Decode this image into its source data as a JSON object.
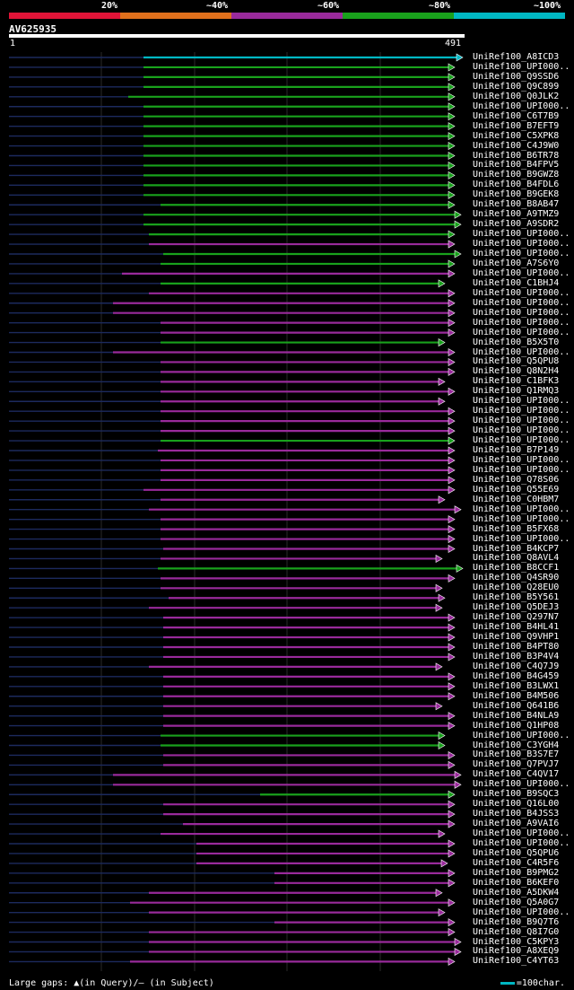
{
  "header": {
    "scale_labels": [
      "20%",
      "~40%",
      "~60%",
      "~80%",
      "~100%"
    ],
    "scale_colors": [
      "#e01437",
      "#e0701c",
      "#992a9b",
      "#19a11c",
      "#00b7c3"
    ],
    "query_id": "AV625935",
    "ruler_start": "1",
    "ruler_end": "491"
  },
  "hits": [
    {
      "name": "UniRef100_A8ICD3",
      "color": "cyan"
    },
    {
      "name": "UniRef100_UPI000..",
      "color": "green"
    },
    {
      "name": "UniRef100_Q9SSD6",
      "color": "green"
    },
    {
      "name": "UniRef100_Q9C899",
      "color": "green"
    },
    {
      "name": "UniRef100_Q0JLK2",
      "color": "green"
    },
    {
      "name": "UniRef100_UPI000..",
      "color": "green"
    },
    {
      "name": "UniRef100_C6T7B9",
      "color": "green"
    },
    {
      "name": "UniRef100_B7EFT9",
      "color": "green"
    },
    {
      "name": "UniRef100_C5XPK8",
      "color": "green"
    },
    {
      "name": "UniRef100_C4J9W0",
      "color": "green"
    },
    {
      "name": "UniRef100_B6TR78",
      "color": "green"
    },
    {
      "name": "UniRef100_B4FPV5",
      "color": "green"
    },
    {
      "name": "UniRef100_B9GWZ8",
      "color": "green"
    },
    {
      "name": "UniRef100_B4FDL6",
      "color": "green"
    },
    {
      "name": "UniRef100_B9GEK8",
      "color": "green"
    },
    {
      "name": "UniRef100_B8AB47",
      "color": "green"
    },
    {
      "name": "UniRef100_A9TMZ9",
      "color": "green"
    },
    {
      "name": "UniRef100_A9SDR2",
      "color": "green"
    },
    {
      "name": "UniRef100_UPI000..",
      "color": "green"
    },
    {
      "name": "UniRef100_UPI000..",
      "color": "purple"
    },
    {
      "name": "UniRef100_UPI000..",
      "color": "green"
    },
    {
      "name": "UniRef100_A7S6Y0",
      "color": "green"
    },
    {
      "name": "UniRef100_UPI000..",
      "color": "purple"
    },
    {
      "name": "UniRef100_C1BHJ4",
      "color": "green"
    },
    {
      "name": "UniRef100_UPI000..",
      "color": "purple"
    },
    {
      "name": "UniRef100_UPI000..",
      "color": "purple"
    },
    {
      "name": "UniRef100_UPI000..",
      "color": "purple"
    },
    {
      "name": "UniRef100_UPI000..",
      "color": "purple"
    },
    {
      "name": "UniRef100_UPI000..",
      "color": "purple"
    },
    {
      "name": "UniRef100_B5X5T0",
      "color": "green"
    },
    {
      "name": "UniRef100_UPI000..",
      "color": "purple"
    },
    {
      "name": "UniRef100_Q5QPU8",
      "color": "purple"
    },
    {
      "name": "UniRef100_Q8N2H4",
      "color": "purple"
    },
    {
      "name": "UniRef100_C1BFK3",
      "color": "purple"
    },
    {
      "name": "UniRef100_Q1RMQ3",
      "color": "purple"
    },
    {
      "name": "UniRef100_UPI000..",
      "color": "purple"
    },
    {
      "name": "UniRef100_UPI000..",
      "color": "purple"
    },
    {
      "name": "UniRef100_UPI000..",
      "color": "purple"
    },
    {
      "name": "UniRef100_UPI000..",
      "color": "purple"
    },
    {
      "name": "UniRef100_UPI000..",
      "color": "green"
    },
    {
      "name": "UniRef100_B7P149",
      "color": "purple"
    },
    {
      "name": "UniRef100_UPI000..",
      "color": "purple"
    },
    {
      "name": "UniRef100_UPI000..",
      "color": "purple"
    },
    {
      "name": "UniRef100_Q78S06",
      "color": "purple"
    },
    {
      "name": "UniRef100_Q55E69",
      "color": "purple"
    },
    {
      "name": "UniRef100_C0HBM7",
      "color": "purple"
    },
    {
      "name": "UniRef100_UPI000..",
      "color": "purple"
    },
    {
      "name": "UniRef100_UPI000..",
      "color": "purple"
    },
    {
      "name": "UniRef100_B5FX68",
      "color": "purple"
    },
    {
      "name": "UniRef100_UPI000..",
      "color": "purple"
    },
    {
      "name": "UniRef100_B4KCP7",
      "color": "purple"
    },
    {
      "name": "UniRef100_Q8AVL4",
      "color": "purple"
    },
    {
      "name": "UniRef100_B8CCF1",
      "color": "green"
    },
    {
      "name": "UniRef100_Q4SR90",
      "color": "purple"
    },
    {
      "name": "UniRef100_Q28EU0",
      "color": "purple"
    },
    {
      "name": "UniRef100_B5Y561",
      "color": "purple"
    },
    {
      "name": "UniRef100_Q5DEJ3",
      "color": "purple"
    },
    {
      "name": "UniRef100_Q297N7",
      "color": "purple"
    },
    {
      "name": "UniRef100_B4HL41",
      "color": "purple"
    },
    {
      "name": "UniRef100_Q9VHP1",
      "color": "purple"
    },
    {
      "name": "UniRef100_B4PT80",
      "color": "purple"
    },
    {
      "name": "UniRef100_B3P4V4",
      "color": "purple"
    },
    {
      "name": "UniRef100_C4Q7J9",
      "color": "purple"
    },
    {
      "name": "UniRef100_B4G459",
      "color": "purple"
    },
    {
      "name": "UniRef100_B3LWX1",
      "color": "purple"
    },
    {
      "name": "UniRef100_B4M506",
      "color": "purple"
    },
    {
      "name": "UniRef100_Q641B6",
      "color": "purple"
    },
    {
      "name": "UniRef100_B4NLA9",
      "color": "purple"
    },
    {
      "name": "UniRef100_Q1HP08",
      "color": "purple"
    },
    {
      "name": "UniRef100_UPI000..",
      "color": "green"
    },
    {
      "name": "UniRef100_C3YGH4",
      "color": "green"
    },
    {
      "name": "UniRef100_B3S7E7",
      "color": "purple"
    },
    {
      "name": "UniRef100_Q7PVJ7",
      "color": "purple"
    },
    {
      "name": "UniRef100_C4QV17",
      "color": "purple"
    },
    {
      "name": "UniRef100_UPI000..",
      "color": "purple"
    },
    {
      "name": "UniRef100_B9SQC3",
      "color": "green"
    },
    {
      "name": "UniRef100_Q16L00",
      "color": "purple"
    },
    {
      "name": "UniRef100_B4JSS3",
      "color": "purple"
    },
    {
      "name": "UniRef100_A9VAI6",
      "color": "purple"
    },
    {
      "name": "UniRef100_UPI000..",
      "color": "purple"
    },
    {
      "name": "UniRef100_UPI000..",
      "color": "purple"
    },
    {
      "name": "UniRef100_Q5QPU6",
      "color": "purple"
    },
    {
      "name": "UniRef100_C4R5F6",
      "color": "purple"
    },
    {
      "name": "UniRef100_B9PMG2",
      "color": "purple"
    },
    {
      "name": "UniRef100_B6KEF0",
      "color": "purple"
    },
    {
      "name": "UniRef100_A5DKW4",
      "color": "purple"
    },
    {
      "name": "UniRef100_Q5A0G7",
      "color": "purple"
    },
    {
      "name": "UniRef100_UPI000..",
      "color": "purple"
    },
    {
      "name": "UniRef100_B9Q7T6",
      "color": "purple"
    },
    {
      "name": "UniRef100_Q8I7G0",
      "color": "purple"
    },
    {
      "name": "UniRef100_C5KPY3",
      "color": "purple"
    },
    {
      "name": "UniRef100_A8XEQ9",
      "color": "purple"
    },
    {
      "name": "UniRef100_C4YT63",
      "color": "purple"
    }
  ],
  "footer": {
    "gaps_label": "Large gaps: ▲(in Query)/— (in Subject)",
    "scale_label": "=100char."
  }
}
